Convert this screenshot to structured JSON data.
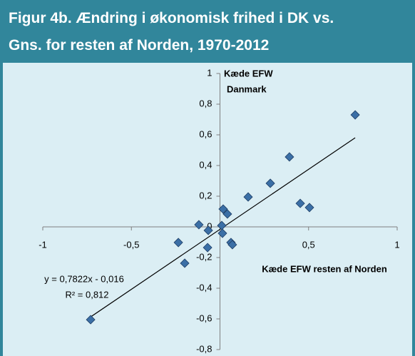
{
  "chart_data": {
    "type": "scatter",
    "title": [
      "Figur 4b. Ændring i økonomisk frihed i DK vs.",
      "Gns. for resten af Norden, 1970-2012"
    ],
    "ylabel": [
      "Kæde EFW",
      "Danmark"
    ],
    "xlabel": "Kæde EFW resten af Norden",
    "x": [
      0.763,
      0.392,
      0.284,
      0.159,
      0.453,
      0.505,
      0.018,
      0.042,
      -0.119,
      0.01,
      -0.066,
      0.014,
      0.062,
      0.07,
      -0.235,
      -0.07,
      -0.199,
      -0.73
    ],
    "y": [
      0.73,
      0.456,
      0.284,
      0.195,
      0.153,
      0.126,
      0.116,
      0.084,
      0.014,
      0.009,
      -0.023,
      -0.042,
      -0.102,
      -0.116,
      -0.102,
      -0.135,
      -0.237,
      -0.605
    ],
    "color": "#3b6fa6",
    "xlim": [
      -1,
      1
    ],
    "ylim": [
      -0.8,
      1
    ],
    "xticks": [
      -1,
      {
        "value": -0.5,
        "label": "-0,5"
      },
      {
        "value": 0.5,
        "label": "0,5"
      },
      1
    ],
    "yticks": [
      {
        "value": -0.8,
        "label": "-0,8"
      },
      {
        "value": -0.6,
        "label": "-0,6"
      },
      {
        "value": -0.4,
        "label": "-0,4"
      },
      {
        "value": -0.2,
        "label": "-0,2"
      },
      0,
      {
        "value": 0.2,
        "label": "0,2"
      },
      {
        "value": 0.4,
        "label": "0,4"
      },
      {
        "value": 0.6,
        "label": "0,6"
      },
      {
        "value": 0.8,
        "label": "0,8"
      },
      1
    ],
    "trendline": {
      "slope": 0.7822,
      "intercept": -0.016,
      "equation": "y = 0,7822x - 0,016",
      "r2": "R² = 0,812"
    }
  }
}
